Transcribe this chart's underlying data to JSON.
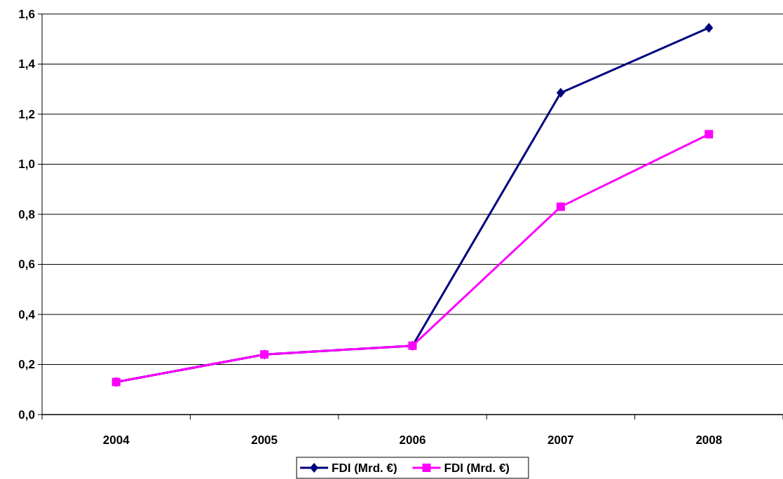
{
  "chart_data": {
    "type": "line",
    "categories": [
      "2004",
      "2005",
      "2006",
      "2007",
      "2008"
    ],
    "series": [
      {
        "name": "FDI (Mrd. €)",
        "color": "#000080",
        "marker": "diamond",
        "values": [
          0.13,
          0.24,
          0.275,
          1.285,
          1.545
        ]
      },
      {
        "name": "FDI (Mrd. €)",
        "color": "#ff00ff",
        "marker": "square",
        "values": [
          0.13,
          0.24,
          0.275,
          0.83,
          1.12
        ]
      }
    ],
    "ylim": [
      0,
      1.6
    ],
    "yticks": [
      {
        "value": 0,
        "label": "0,0"
      },
      {
        "value": 0.2,
        "label": "0,2"
      },
      {
        "value": 0.4,
        "label": "0,4"
      },
      {
        "value": 0.6,
        "label": "0,6"
      },
      {
        "value": 0.8,
        "label": "0,8"
      },
      {
        "value": 1,
        "label": "1,0"
      },
      {
        "value": 1.2,
        "label": "1,2"
      },
      {
        "value": 1.4,
        "label": "1,4"
      },
      {
        "value": 1.6,
        "label": "1,6"
      }
    ],
    "grid": "y",
    "legend": "bottom",
    "line_style": "solid"
  }
}
